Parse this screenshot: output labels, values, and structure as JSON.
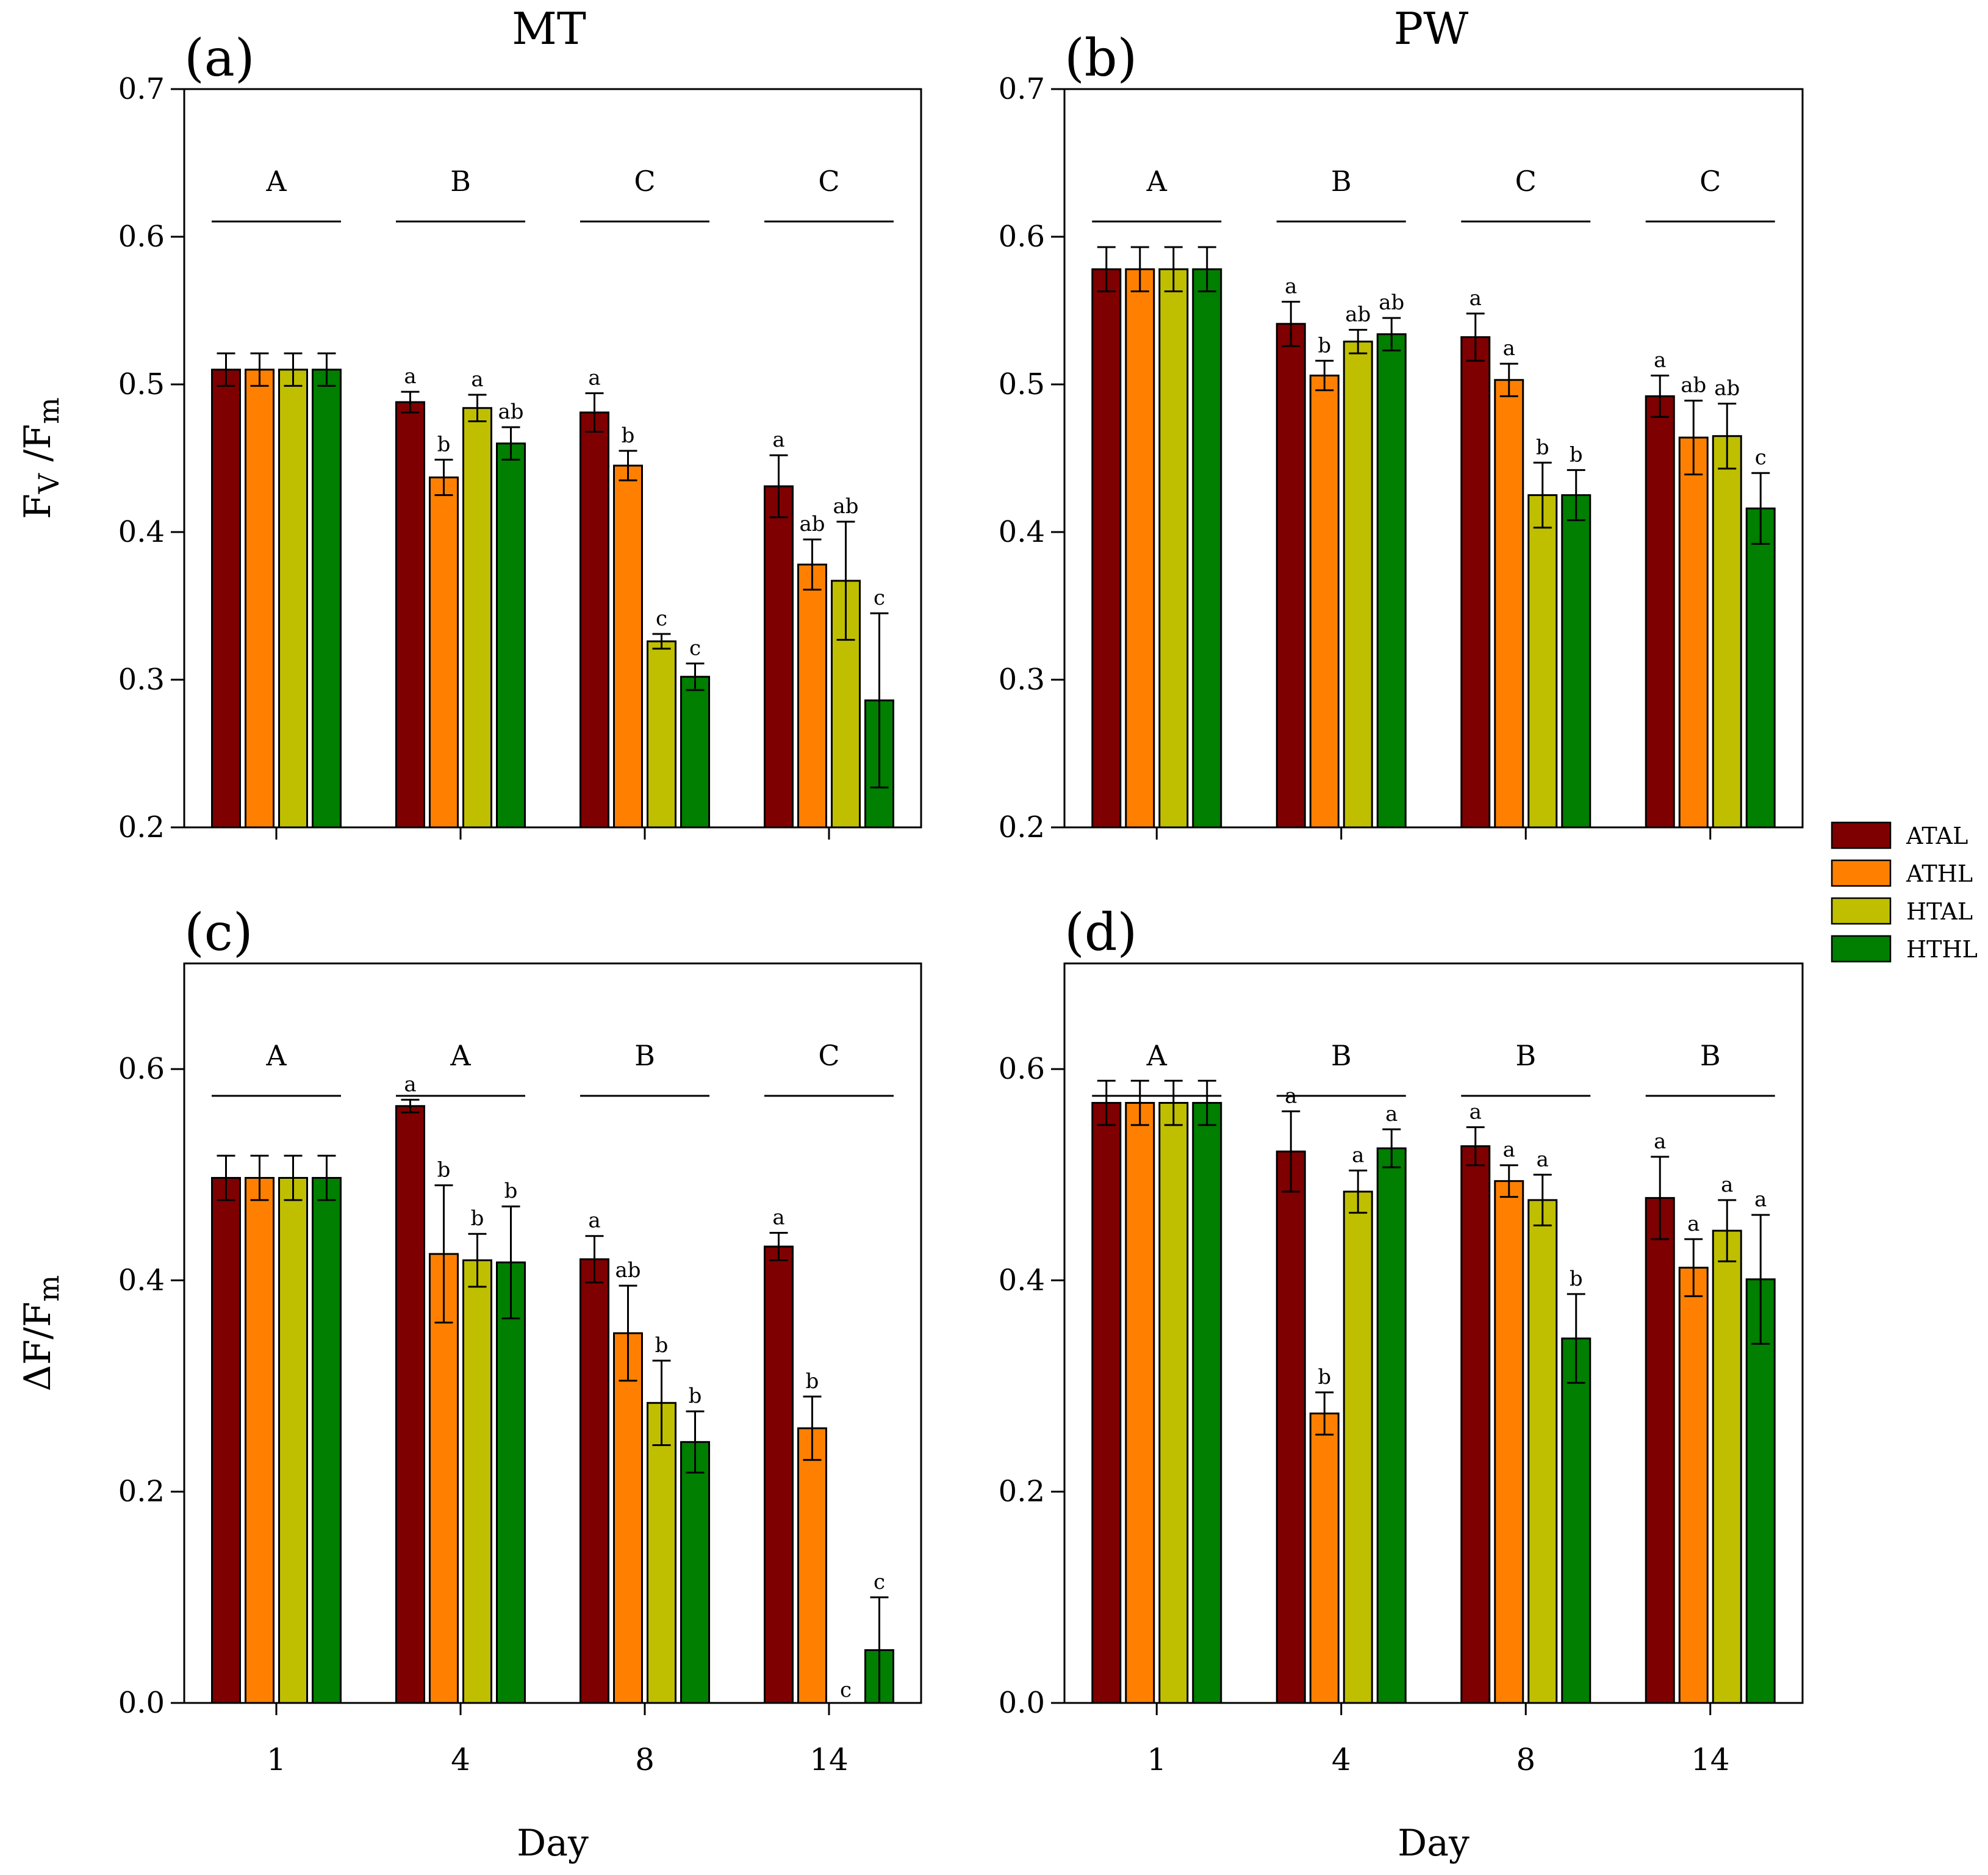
{
  "legend": [
    {
      "name": "ATAL",
      "color": "#7f0000"
    },
    {
      "name": "ATHL",
      "color": "#ff8000"
    },
    {
      "name": "HTAL",
      "color": "#bfbf00"
    },
    {
      "name": "HTHL",
      "color": "#007f00"
    }
  ],
  "column_titles": {
    "left": "MT",
    "right": "PW"
  },
  "chart_data": [
    {
      "id": "a",
      "panel_label": "(a)",
      "type": "bar",
      "title": "MT",
      "ylabel": "Fv/Fm",
      "ylabel_main": "F",
      "ylabel_sub1": "V",
      "ylabel_mid": " /F",
      "ylabel_sub2": "m",
      "xlabel": "",
      "ylim": [
        0.2,
        0.7
      ],
      "yticks": [
        0.2,
        0.3,
        0.4,
        0.5,
        0.6,
        0.7
      ],
      "ytick_labels": [
        "0.2",
        "0.3",
        "0.4",
        "0.5",
        "0.6",
        "0.7"
      ],
      "categories": [
        "1",
        "4",
        "8",
        "14"
      ],
      "show_xtick_labels": false,
      "group_letters": [
        "A",
        "B",
        "C",
        "C"
      ],
      "series": [
        {
          "name": "ATAL",
          "values": [
            0.51,
            0.488,
            0.481,
            0.431
          ],
          "errors": [
            0.011,
            0.007,
            0.013,
            0.021
          ],
          "letters": [
            "",
            "a",
            "a",
            "a"
          ]
        },
        {
          "name": "ATHL",
          "values": [
            0.51,
            0.437,
            0.445,
            0.378
          ],
          "errors": [
            0.011,
            0.012,
            0.01,
            0.017
          ],
          "letters": [
            "",
            "b",
            "b",
            "ab"
          ]
        },
        {
          "name": "HTAL",
          "values": [
            0.51,
            0.484,
            0.326,
            0.367
          ],
          "errors": [
            0.011,
            0.009,
            0.005,
            0.04
          ],
          "letters": [
            "",
            "a",
            "c",
            "ab"
          ]
        },
        {
          "name": "HTHL",
          "values": [
            0.51,
            0.46,
            0.302,
            0.286
          ],
          "errors": [
            0.011,
            0.011,
            0.009,
            0.059
          ],
          "letters": [
            "",
            "ab",
            "c",
            "c"
          ]
        }
      ]
    },
    {
      "id": "b",
      "panel_label": "(b)",
      "type": "bar",
      "title": "PW",
      "ylabel": "",
      "xlabel": "",
      "ylim": [
        0.2,
        0.7
      ],
      "yticks": [
        0.2,
        0.3,
        0.4,
        0.5,
        0.6,
        0.7
      ],
      "ytick_labels": [
        "0.2",
        "0.3",
        "0.4",
        "0.5",
        "0.6",
        "0.7"
      ],
      "categories": [
        "1",
        "4",
        "8",
        "14"
      ],
      "show_xtick_labels": false,
      "group_letters": [
        "A",
        "B",
        "C",
        "C"
      ],
      "series": [
        {
          "name": "ATAL",
          "values": [
            0.578,
            0.541,
            0.532,
            0.492
          ],
          "errors": [
            0.015,
            0.015,
            0.016,
            0.014
          ],
          "letters": [
            "",
            "a",
            "a",
            "a"
          ]
        },
        {
          "name": "ATHL",
          "values": [
            0.578,
            0.506,
            0.503,
            0.464
          ],
          "errors": [
            0.015,
            0.01,
            0.011,
            0.025
          ],
          "letters": [
            "",
            "b",
            "a",
            "ab"
          ]
        },
        {
          "name": "HTAL",
          "values": [
            0.578,
            0.529,
            0.425,
            0.465
          ],
          "errors": [
            0.015,
            0.008,
            0.022,
            0.022
          ],
          "letters": [
            "",
            "ab",
            "b",
            "ab"
          ]
        },
        {
          "name": "HTHL",
          "values": [
            0.578,
            0.534,
            0.425,
            0.416
          ],
          "errors": [
            0.015,
            0.011,
            0.017,
            0.024
          ],
          "letters": [
            "",
            "ab",
            "b",
            "c"
          ]
        }
      ]
    },
    {
      "id": "c",
      "panel_label": "(c)",
      "type": "bar",
      "title": "",
      "ylabel": "ΔF/Fm",
      "ylabel_main": "ΔF/F",
      "ylabel_sub2": "m",
      "xlabel": "Day",
      "ylim": [
        0.0,
        0.7
      ],
      "yticks": [
        0.0,
        0.2,
        0.4,
        0.6
      ],
      "ytick_labels": [
        "0.0",
        "0.2",
        "0.4",
        "0.6"
      ],
      "categories": [
        "1",
        "4",
        "8",
        "14"
      ],
      "show_xtick_labels": true,
      "group_letters": [
        "A",
        "A",
        "B",
        "C"
      ],
      "series": [
        {
          "name": "ATAL",
          "values": [
            0.497,
            0.565,
            0.42,
            0.432
          ],
          "errors": [
            0.021,
            0.006,
            0.022,
            0.013
          ],
          "letters": [
            "",
            "a",
            "a",
            "a"
          ]
        },
        {
          "name": "ATHL",
          "values": [
            0.497,
            0.425,
            0.35,
            0.26
          ],
          "errors": [
            0.021,
            0.065,
            0.045,
            0.03
          ],
          "letters": [
            "",
            "b",
            "ab",
            "b"
          ]
        },
        {
          "name": "HTAL",
          "values": [
            0.497,
            0.419,
            0.284,
            0.0
          ],
          "errors": [
            0.021,
            0.025,
            0.04,
            0.0
          ],
          "letters": [
            "",
            "b",
            "b",
            "c"
          ]
        },
        {
          "name": "HTHL",
          "values": [
            0.497,
            0.417,
            0.247,
            0.05
          ],
          "errors": [
            0.021,
            0.053,
            0.029,
            0.05
          ],
          "letters": [
            "",
            "b",
            "b",
            "c"
          ]
        }
      ]
    },
    {
      "id": "d",
      "panel_label": "(d)",
      "type": "bar",
      "title": "",
      "ylabel": "",
      "xlabel": "Day",
      "ylim": [
        0.0,
        0.7
      ],
      "yticks": [
        0.0,
        0.2,
        0.4,
        0.6
      ],
      "ytick_labels": [
        "0.0",
        "0.2",
        "0.4",
        "0.6"
      ],
      "categories": [
        "1",
        "4",
        "8",
        "14"
      ],
      "show_xtick_labels": true,
      "group_letters": [
        "A",
        "B",
        "B",
        "B"
      ],
      "series": [
        {
          "name": "ATAL",
          "values": [
            0.568,
            0.522,
            0.527,
            0.478
          ],
          "errors": [
            0.021,
            0.038,
            0.018,
            0.039
          ],
          "letters": [
            "",
            "a",
            "a",
            "a"
          ]
        },
        {
          "name": "ATHL",
          "values": [
            0.568,
            0.274,
            0.494,
            0.412
          ],
          "errors": [
            0.021,
            0.02,
            0.015,
            0.027
          ],
          "letters": [
            "",
            "b",
            "a",
            "a"
          ]
        },
        {
          "name": "HTAL",
          "values": [
            0.568,
            0.484,
            0.476,
            0.447
          ],
          "errors": [
            0.021,
            0.02,
            0.024,
            0.029
          ],
          "letters": [
            "",
            "a",
            "a",
            "a"
          ]
        },
        {
          "name": "HTHL",
          "values": [
            0.568,
            0.525,
            0.345,
            0.401
          ],
          "errors": [
            0.021,
            0.018,
            0.042,
            0.061
          ],
          "letters": [
            "",
            "a",
            "b",
            "a"
          ]
        }
      ]
    }
  ]
}
